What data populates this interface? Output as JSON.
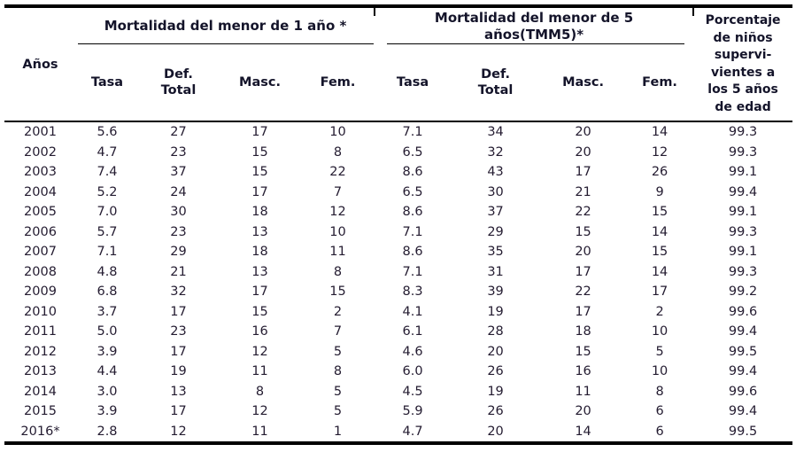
{
  "table": {
    "header": {
      "years_label": "Años",
      "group1_label": "Mortalidad del menor  de 1 año *",
      "group2_label": "Mortalidad del menor  de 5\naños(TMM5)*",
      "pct_label": "Porcentaje\nde niños\nsupervi-\nvientes a\nlos 5 años\nde edad",
      "sub": [
        "Tasa",
        "Def.\nTotal",
        "Masc.",
        "Fem.",
        "Tasa",
        "Def.\nTotal",
        "Masc.",
        "Fem."
      ]
    },
    "rows": [
      [
        "2001",
        "5.6",
        "27",
        "17",
        "10",
        "7.1",
        "34",
        "20",
        "14",
        "99.3"
      ],
      [
        "2002",
        "4.7",
        "23",
        "15",
        "8",
        "6.5",
        "32",
        "20",
        "12",
        "99.3"
      ],
      [
        "2003",
        "7.4",
        "37",
        "15",
        "22",
        "8.6",
        "43",
        "17",
        "26",
        "99.1"
      ],
      [
        "2004",
        "5.2",
        "24",
        "17",
        "7",
        "6.5",
        "30",
        "21",
        "9",
        "99.4"
      ],
      [
        "2005",
        "7.0",
        "30",
        "18",
        "12",
        "8.6",
        "37",
        "22",
        "15",
        "99.1"
      ],
      [
        "2006",
        "5.7",
        "23",
        "13",
        "10",
        "7.1",
        "29",
        "15",
        "14",
        "99.3"
      ],
      [
        "2007",
        "7.1",
        "29",
        "18",
        "11",
        "8.6",
        "35",
        "20",
        "15",
        "99.1"
      ],
      [
        "2008",
        "4.8",
        "21",
        "13",
        "8",
        "7.1",
        "31",
        "17",
        "14",
        "99.3"
      ],
      [
        "2009",
        "6.8",
        "32",
        "17",
        "15",
        "8.3",
        "39",
        "22",
        "17",
        "99.2"
      ],
      [
        "2010",
        "3.7",
        "17",
        "15",
        "2",
        "4.1",
        "19",
        "17",
        "2",
        "99.6"
      ],
      [
        "2011",
        "5.0",
        "23",
        "16",
        "7",
        "6.1",
        "28",
        "18",
        "10",
        "99.4"
      ],
      [
        "2012",
        "3.9",
        "17",
        "12",
        "5",
        "4.6",
        "20",
        "15",
        "5",
        "99.5"
      ],
      [
        "2013",
        "4.4",
        "19",
        "11",
        "8",
        "6.0",
        "26",
        "16",
        "10",
        "99.4"
      ],
      [
        "2014",
        "3.0",
        "13",
        "8",
        "5",
        "4.5",
        "19",
        "11",
        "8",
        "99.6"
      ],
      [
        "2015",
        "3.9",
        "17",
        "12",
        "5",
        "5.9",
        "26",
        "20",
        "6",
        "99.4"
      ],
      [
        "2016*",
        "2.8",
        "12",
        "11",
        "1",
        "4.7",
        "20",
        "14",
        "6",
        "99.5"
      ]
    ]
  }
}
